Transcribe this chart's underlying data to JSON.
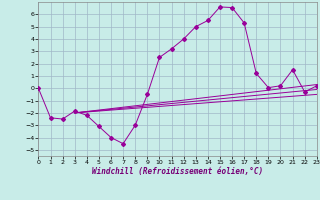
{
  "xlabel": "Windchill (Refroidissement éolien,°C)",
  "bg_color": "#c8ece8",
  "grid_color": "#a0b8c8",
  "line_color": "#990099",
  "xlim": [
    0,
    23
  ],
  "ylim": [
    -5.5,
    7.0
  ],
  "xticks": [
    0,
    1,
    2,
    3,
    4,
    5,
    6,
    7,
    8,
    9,
    10,
    11,
    12,
    13,
    14,
    15,
    16,
    17,
    18,
    19,
    20,
    21,
    22,
    23
  ],
  "yticks": [
    -5,
    -4,
    -3,
    -2,
    -1,
    0,
    1,
    2,
    3,
    4,
    5,
    6
  ],
  "main_y": [
    0.0,
    -2.4,
    -2.5,
    -1.85,
    -2.2,
    -3.1,
    -4.0,
    -4.5,
    -3.0,
    -0.5,
    2.5,
    3.2,
    4.0,
    5.0,
    5.5,
    6.6,
    6.55,
    5.3,
    1.2,
    0.05,
    0.2,
    1.5,
    -0.3,
    0.2
  ],
  "ref_lines": [
    {
      "x0": 3,
      "y0": -2.0,
      "x1": 23,
      "y1": 0.3
    },
    {
      "x0": 3,
      "y0": -2.0,
      "x1": 23,
      "y1": -0.1
    },
    {
      "x0": 3,
      "y0": -2.0,
      "x1": 23,
      "y1": -0.5
    }
  ]
}
